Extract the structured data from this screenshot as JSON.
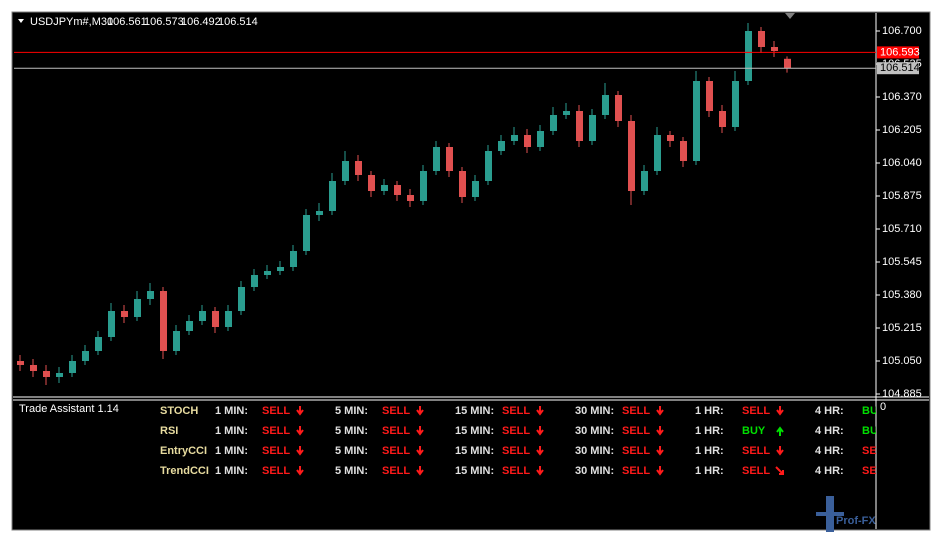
{
  "chart_data": {
    "type": "candlestick",
    "symbol": "USDJPYm#,M30",
    "ohlc": [
      106.561,
      106.573,
      106.492,
      106.514
    ],
    "up_color": "#2a9d8f",
    "down_color": "#e05050",
    "ylim": [
      104.87,
      106.785
    ],
    "yticks": [
      {
        "value": 106.7,
        "label": "106.700"
      },
      106.535,
      {
        "value": 106.37,
        "label": "106.370"
      },
      106.205,
      {
        "value": 106.04,
        "label": "106.040"
      },
      105.875,
      {
        "value": 105.71,
        "label": "105.710"
      },
      105.545,
      {
        "value": 105.38,
        "label": "105.380"
      },
      105.215,
      {
        "value": 105.05,
        "label": "105.050"
      },
      104.885
    ],
    "price_lines": [
      {
        "value": 106.593,
        "color": "#ff0000",
        "text_color": "#ffffff"
      },
      {
        "value": 106.514,
        "color": "#c0c0c0",
        "text_color": "#000000"
      }
    ],
    "open": [
      105.05,
      105.03,
      105.0,
      104.97,
      104.99,
      105.05,
      105.1,
      105.17,
      105.3,
      105.27,
      105.36,
      105.4,
      105.1,
      105.2,
      105.25,
      105.3,
      105.22,
      105.3,
      105.42,
      105.48,
      105.5,
      105.52,
      105.6,
      105.78,
      105.8,
      105.95,
      106.05,
      105.98,
      105.9,
      105.93,
      105.88,
      105.85,
      106.0,
      106.12,
      106.0,
      105.87,
      105.95,
      106.1,
      106.15,
      106.18,
      106.12,
      106.2,
      106.28,
      106.3,
      106.15,
      106.28,
      106.38,
      106.25,
      105.9,
      106.0,
      106.18,
      106.15,
      106.05,
      106.45,
      106.3,
      106.22,
      106.45,
      106.7,
      106.62,
      106.561
    ],
    "high": [
      105.08,
      105.06,
      105.03,
      105.02,
      105.08,
      105.13,
      105.2,
      105.34,
      105.33,
      105.4,
      105.44,
      105.42,
      105.23,
      105.28,
      105.33,
      105.32,
      105.33,
      105.45,
      105.51,
      105.53,
      105.55,
      105.63,
      105.81,
      105.84,
      105.99,
      106.1,
      106.08,
      106.0,
      105.96,
      105.95,
      105.91,
      106.03,
      106.15,
      106.14,
      106.02,
      105.98,
      106.13,
      106.18,
      106.22,
      106.21,
      106.23,
      106.32,
      106.34,
      106.33,
      106.31,
      106.44,
      106.4,
      106.28,
      106.03,
      106.22,
      106.2,
      106.17,
      106.5,
      106.47,
      106.33,
      106.5,
      106.74,
      106.72,
      106.65,
      106.573
    ],
    "low": [
      105.0,
      104.97,
      104.93,
      104.94,
      104.97,
      105.03,
      105.08,
      105.15,
      105.24,
      105.25,
      105.33,
      105.06,
      105.08,
      105.18,
      105.23,
      105.19,
      105.2,
      105.28,
      105.4,
      105.46,
      105.48,
      105.5,
      105.58,
      105.75,
      105.78,
      105.93,
      105.95,
      105.87,
      105.88,
      105.85,
      105.82,
      105.83,
      105.98,
      105.97,
      105.84,
      105.85,
      105.93,
      106.08,
      106.13,
      106.09,
      106.1,
      106.18,
      106.26,
      106.12,
      106.13,
      106.26,
      106.22,
      105.83,
      105.88,
      105.98,
      106.12,
      106.02,
      106.03,
      106.27,
      106.19,
      106.2,
      106.43,
      106.59,
      106.57,
      106.492
    ],
    "close": [
      105.03,
      105.0,
      104.97,
      104.99,
      105.05,
      105.1,
      105.17,
      105.3,
      105.27,
      105.36,
      105.4,
      105.1,
      105.2,
      105.25,
      105.3,
      105.22,
      105.3,
      105.42,
      105.48,
      105.5,
      105.52,
      105.6,
      105.78,
      105.8,
      105.95,
      106.05,
      105.98,
      105.9,
      105.93,
      105.88,
      105.85,
      106.0,
      106.12,
      106.0,
      105.87,
      105.95,
      106.1,
      106.15,
      106.18,
      106.12,
      106.2,
      106.28,
      106.3,
      106.15,
      106.28,
      106.38,
      106.25,
      105.9,
      106.0,
      106.18,
      106.15,
      106.05,
      106.45,
      106.3,
      106.22,
      106.45,
      106.7,
      106.62,
      106.6,
      106.514
    ]
  },
  "indicator": {
    "title": "Trade Assistant 1.14",
    "axis_label": "0",
    "timeframes": [
      "1 MIN:",
      "5 MIN:",
      "15 MIN:",
      "30 MIN:",
      "1 HR:",
      "4 HR:"
    ],
    "rows": [
      {
        "label": "STOCH",
        "cells": [
          {
            "signal": "SELL",
            "color": "#ff1a1a",
            "arrow": "down"
          },
          {
            "signal": "SELL",
            "color": "#ff1a1a",
            "arrow": "down"
          },
          {
            "signal": "SELL",
            "color": "#ff1a1a",
            "arrow": "down"
          },
          {
            "signal": "SELL",
            "color": "#ff1a1a",
            "arrow": "down"
          },
          {
            "signal": "SELL",
            "color": "#ff1a1a",
            "arrow": "down"
          },
          {
            "signal": "BUY",
            "color": "#00e000",
            "arrow": "up"
          }
        ]
      },
      {
        "label": "RSI",
        "cells": [
          {
            "signal": "SELL",
            "color": "#ff1a1a",
            "arrow": "down"
          },
          {
            "signal": "SELL",
            "color": "#ff1a1a",
            "arrow": "down"
          },
          {
            "signal": "SELL",
            "color": "#ff1a1a",
            "arrow": "down"
          },
          {
            "signal": "SELL",
            "color": "#ff1a1a",
            "arrow": "down"
          },
          {
            "signal": "BUY",
            "color": "#00e000",
            "arrow": "up"
          },
          {
            "signal": "BUY",
            "color": "#00e000",
            "arrow": "up"
          }
        ]
      },
      {
        "label": "EntryCCI",
        "cells": [
          {
            "signal": "SELL",
            "color": "#ff1a1a",
            "arrow": "down"
          },
          {
            "signal": "SELL",
            "color": "#ff1a1a",
            "arrow": "down"
          },
          {
            "signal": "SELL",
            "color": "#ff1a1a",
            "arrow": "down"
          },
          {
            "signal": "SELL",
            "color": "#ff1a1a",
            "arrow": "down"
          },
          {
            "signal": "SELL",
            "color": "#ff1a1a",
            "arrow": "down"
          },
          {
            "signal": "SELL",
            "color": "#ff1a1a",
            "arrow": "down"
          }
        ]
      },
      {
        "label": "TrendCCI",
        "cells": [
          {
            "signal": "SELL",
            "color": "#ff1a1a",
            "arrow": "down"
          },
          {
            "signal": "SELL",
            "color": "#ff1a1a",
            "arrow": "down"
          },
          {
            "signal": "SELL",
            "color": "#ff1a1a",
            "arrow": "down"
          },
          {
            "signal": "SELL",
            "color": "#ff1a1a",
            "arrow": "down"
          },
          {
            "signal": "SELL",
            "color": "#ff1a1a",
            "arrow": "down-right"
          },
          {
            "signal": "SELL",
            "color": "#ff1a1a",
            "arrow": "down"
          }
        ]
      }
    ]
  },
  "watermark": "Prof-FX"
}
